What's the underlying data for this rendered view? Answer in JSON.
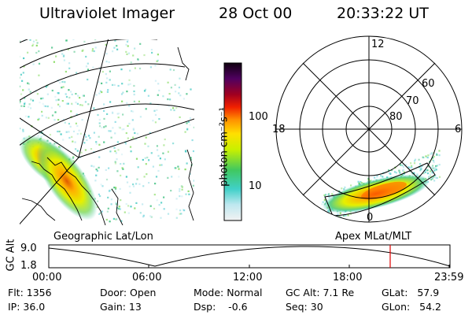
{
  "header": {
    "instrument": "Ultraviolet Imager",
    "date": "28 Oct 00",
    "time": "20:33:22 UT"
  },
  "colorbar": {
    "unit_label": "photon cm⁻²s⁻¹",
    "ticks": [
      "100",
      "10"
    ]
  },
  "geo_panel": {
    "caption": "Geographic Lat/Lon"
  },
  "polar_panel": {
    "caption": "Apex  MLat/MLT",
    "mlt_labels": [
      "12",
      "18",
      "6",
      "0"
    ],
    "lat_labels": [
      "60",
      "70",
      "80"
    ]
  },
  "altitude_strip": {
    "ylabel": "GC Alt",
    "ytick_high": "9.0",
    "ytick_low": "1.8",
    "time_ticks": [
      "00:00",
      "06:00",
      "12:00",
      "18:00",
      "23:59"
    ],
    "current_marker_color": "#e00000"
  },
  "status": {
    "flt": "Flt: 1356",
    "ip": "IP: 36.0",
    "door": "Door: Open",
    "gain": "Gain: 13",
    "mode": "Mode: Normal",
    "dsp": "Dsp:    -0.6",
    "gc_alt": "GC Alt: 7.1 Re",
    "seq": "Seq: 30",
    "glat": "GLat:   57.9",
    "glon": "GLon:   54.2"
  }
}
